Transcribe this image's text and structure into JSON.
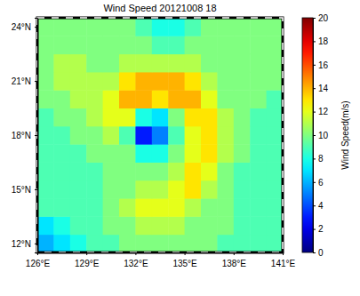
{
  "chart_data": {
    "type": "heatmap",
    "title": "Wind Speed 20121008 18",
    "x": [
      126.5,
      127.5,
      128.5,
      129.5,
      130.5,
      131.5,
      132.5,
      133.5,
      134.5,
      135.5,
      136.5,
      137.5,
      138.5,
      139.5,
      140.5
    ],
    "y": [
      12,
      13,
      14,
      15,
      16,
      17,
      18,
      19,
      20,
      21,
      22,
      23,
      24
    ],
    "z": [
      [
        6,
        7,
        8,
        9,
        9,
        10,
        10,
        10,
        10,
        10,
        10,
        9,
        9,
        9,
        9
      ],
      [
        7,
        8,
        9,
        9,
        10,
        10,
        11,
        11,
        11,
        10,
        10,
        10,
        9,
        9,
        9
      ],
      [
        9,
        9,
        9,
        9,
        10,
        11,
        12,
        12,
        12,
        11,
        10,
        10,
        9,
        9,
        9
      ],
      [
        9,
        9,
        9,
        9,
        10,
        10,
        11,
        11,
        12,
        13,
        11,
        10,
        9,
        9,
        9
      ],
      [
        9,
        9,
        9,
        9,
        10,
        10,
        10,
        10,
        11,
        13,
        12,
        10,
        9,
        9,
        9
      ],
      [
        9,
        9,
        9,
        10,
        10,
        10,
        8,
        8,
        10,
        12,
        13,
        11,
        10,
        9,
        9
      ],
      [
        9,
        9,
        10,
        10,
        11,
        9,
        3,
        5,
        9,
        12,
        13,
        11,
        10,
        9,
        9
      ],
      [
        9,
        10,
        10,
        11,
        12,
        12,
        8,
        7,
        10,
        13,
        13,
        11,
        10,
        9,
        9
      ],
      [
        10,
        10,
        11,
        11,
        12,
        14,
        14,
        13,
        14,
        14,
        12,
        10,
        10,
        10,
        9
      ],
      [
        10,
        11,
        11,
        11,
        11,
        13,
        14,
        14,
        14,
        13,
        11,
        10,
        10,
        10,
        10
      ],
      [
        10,
        11,
        11,
        10,
        10,
        11,
        11,
        11,
        11,
        11,
        10,
        10,
        10,
        10,
        10
      ],
      [
        10,
        10,
        10,
        10,
        10,
        10,
        10,
        9,
        9,
        10,
        10,
        10,
        10,
        10,
        10
      ],
      [
        10,
        10,
        10,
        10,
        10,
        10,
        9,
        8,
        8,
        9,
        10,
        10,
        10,
        10,
        10
      ]
    ],
    "xlim": [
      126,
      141
    ],
    "xticks": [
      {
        "value": 126,
        "label": "126°E"
      },
      {
        "value": 129,
        "label": "129°E"
      },
      {
        "value": 132,
        "label": "132°E"
      },
      {
        "value": 135,
        "label": "135°E"
      },
      {
        "value": 138,
        "label": "138°E"
      },
      {
        "value": 141,
        "label": "141°E"
      }
    ],
    "ylim": [
      11.5,
      24.5
    ],
    "yticks": [
      {
        "value": 12,
        "label": "12°N"
      },
      {
        "value": 15,
        "label": "15°N"
      },
      {
        "value": 18,
        "label": "18°N"
      },
      {
        "value": 21,
        "label": "21°N"
      },
      {
        "value": 24,
        "label": "24°N"
      }
    ],
    "colorbar_lim": [
      0,
      20
    ],
    "colorbar_ticks": [
      0,
      2,
      4,
      6,
      8,
      10,
      12,
      14,
      16,
      18,
      20
    ],
    "colorbar_label": "Wind Speed(m/s)"
  }
}
